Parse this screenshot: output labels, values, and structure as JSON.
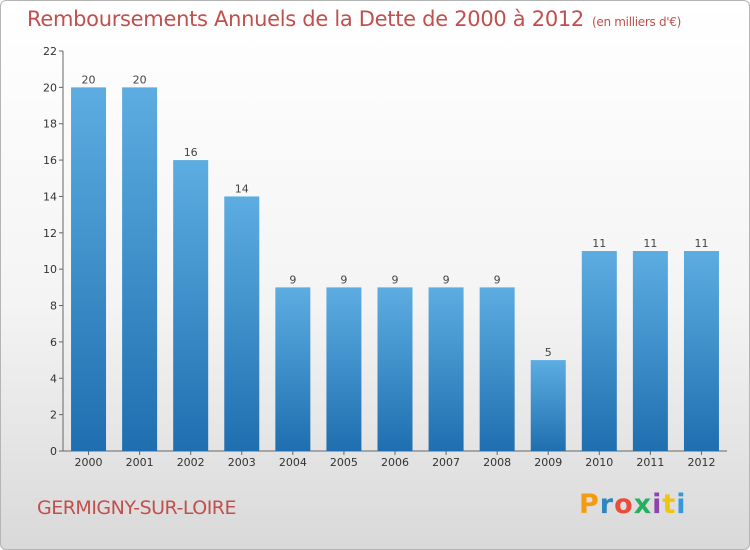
{
  "header": {
    "title": "Remboursements Annuels de la Dette de 2000 à 2012",
    "unit": "(en milliers d'€)"
  },
  "footer": {
    "commune": "GERMIGNY-SUR-LOIRE",
    "logo": "Proxiti",
    "logo_colors": [
      "#f39c12",
      "#2e86c1",
      "#e74c3c",
      "#27ae60",
      "#8e44ad",
      "#f1c40f",
      "#3498db"
    ]
  },
  "colors": {
    "bar_top": "#5dade2",
    "bar_bottom": "#1f6fb0",
    "accent": "#c0504d"
  },
  "chart_data": {
    "type": "bar",
    "title": "Remboursements Annuels de la Dette de 2000 à 2012",
    "subtitle": "(en milliers d'€)",
    "xlabel": "",
    "ylabel": "",
    "categories": [
      "2000",
      "2001",
      "2002",
      "2003",
      "2004",
      "2005",
      "2006",
      "2007",
      "2008",
      "2009",
      "2010",
      "2011",
      "2012"
    ],
    "values": [
      20,
      20,
      16,
      14,
      9,
      9,
      9,
      9,
      9,
      5,
      11,
      11,
      11
    ],
    "ylim": [
      0,
      22
    ],
    "yticks": [
      0,
      2,
      4,
      6,
      8,
      10,
      12,
      14,
      16,
      18,
      20,
      22
    ],
    "grid": false,
    "legend": "none"
  }
}
